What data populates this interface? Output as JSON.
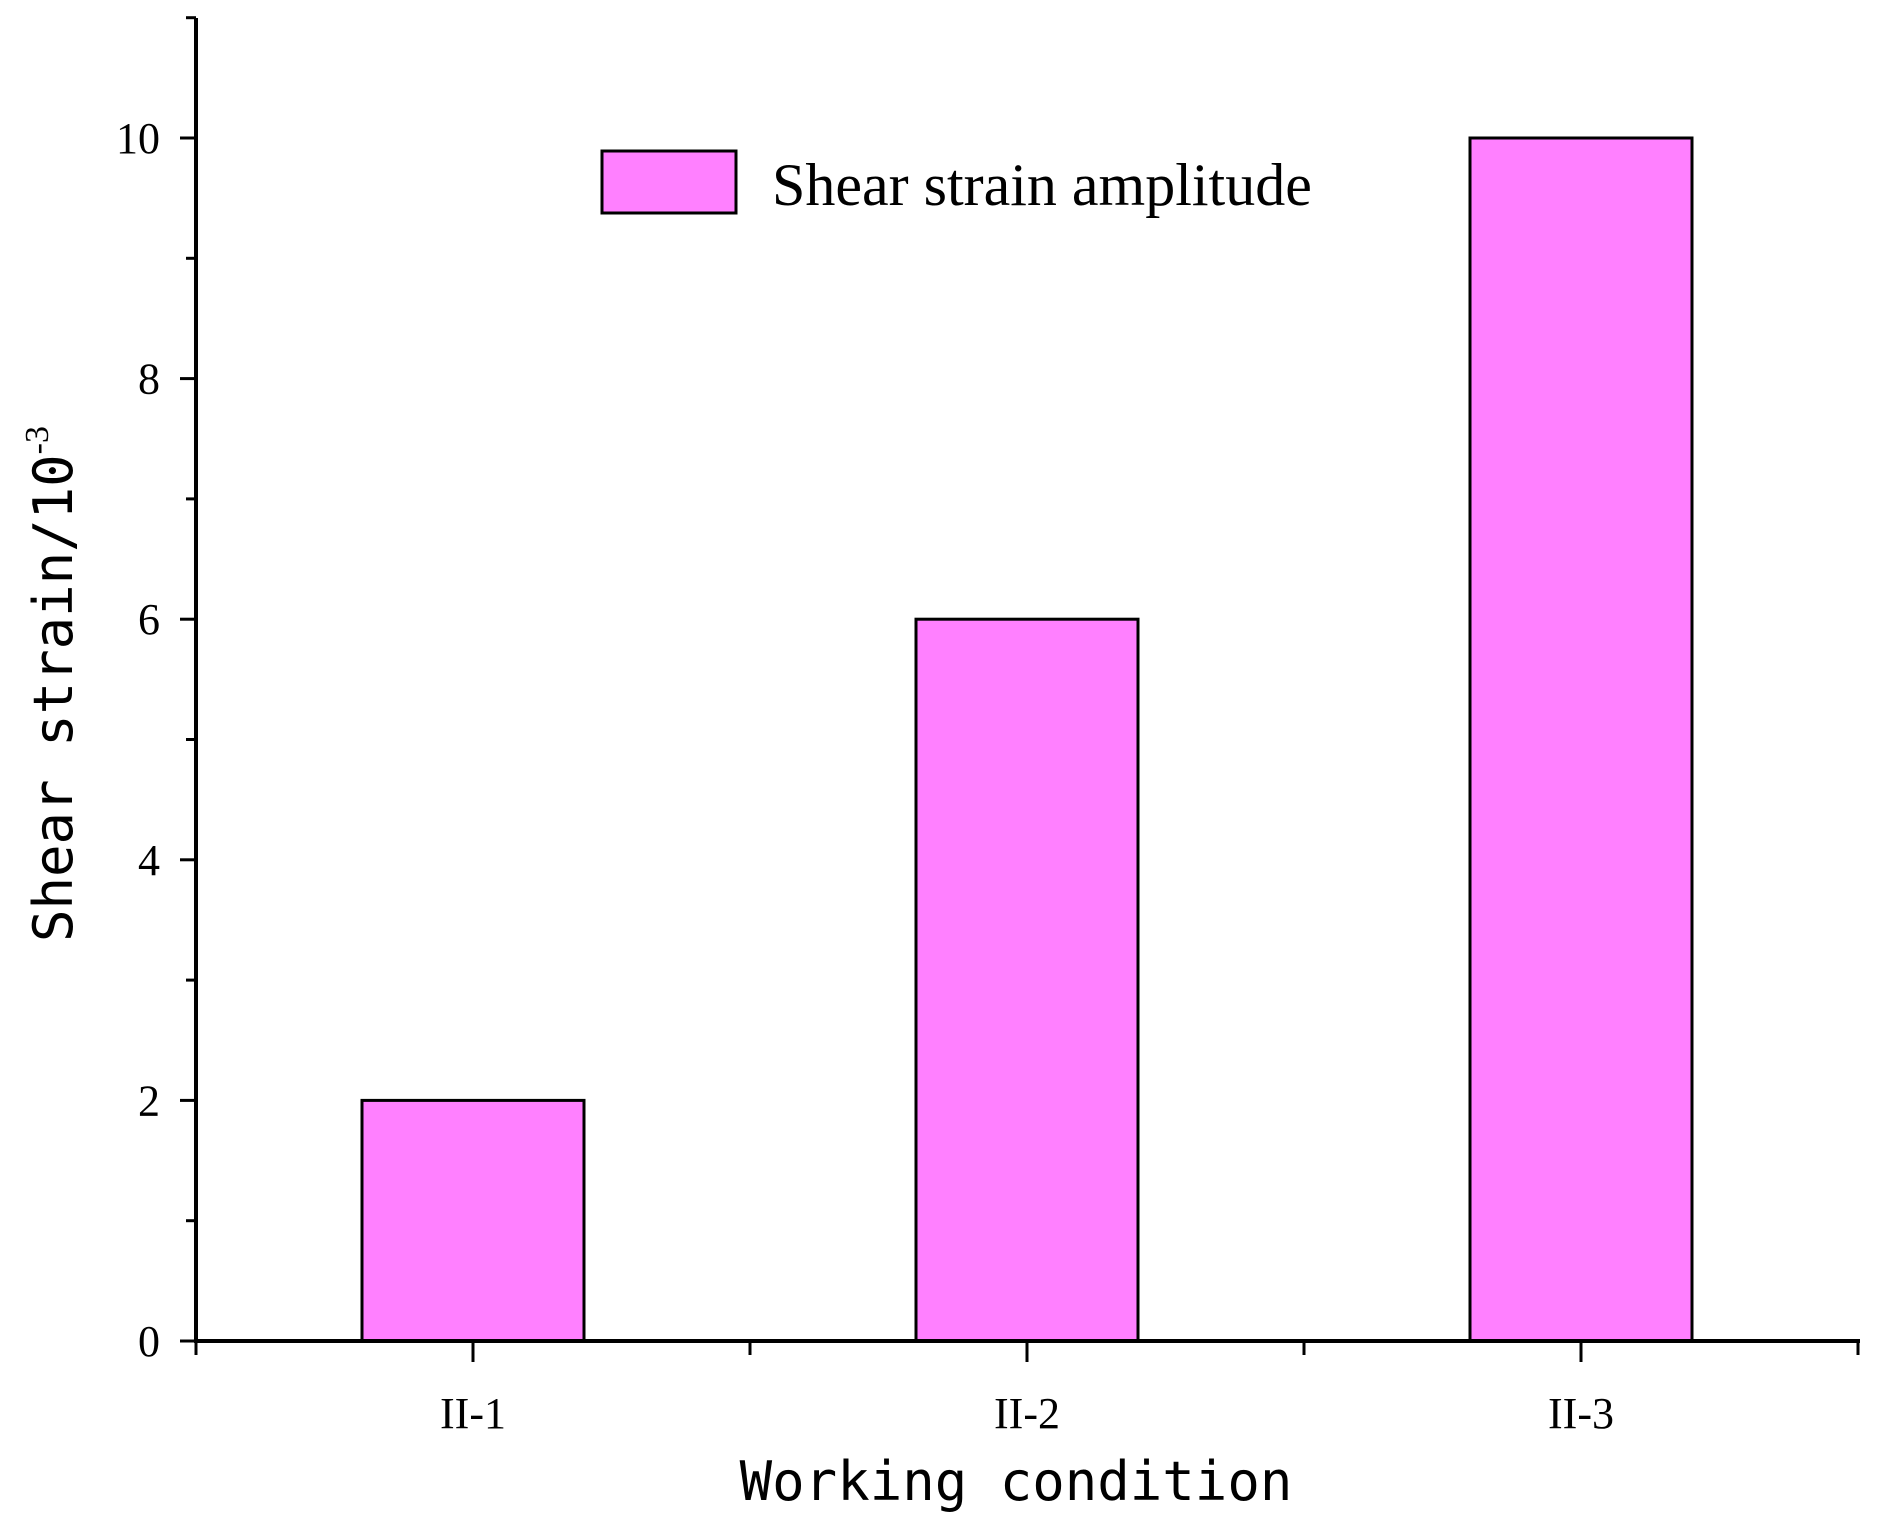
{
  "chart_data": {
    "type": "bar",
    "categories": [
      "II-1",
      "II-2",
      "II-3"
    ],
    "series": [
      {
        "name": "Shear strain amplitude",
        "values": [
          2,
          6,
          10
        ]
      }
    ],
    "xlabel": "Working condition",
    "ylabel": "Shear strain/10",
    "ylabel_exponent": "-3",
    "ylim": [
      0,
      11
    ],
    "yticks": [
      0,
      2,
      4,
      6,
      8,
      10
    ],
    "ytick_labels": [
      "0",
      "2",
      "4",
      "6",
      "8",
      "10"
    ],
    "grid": false,
    "legend_position": "top-center",
    "colors": {
      "bar_fill": "#ff80ff",
      "bar_stroke": "#000000"
    }
  }
}
